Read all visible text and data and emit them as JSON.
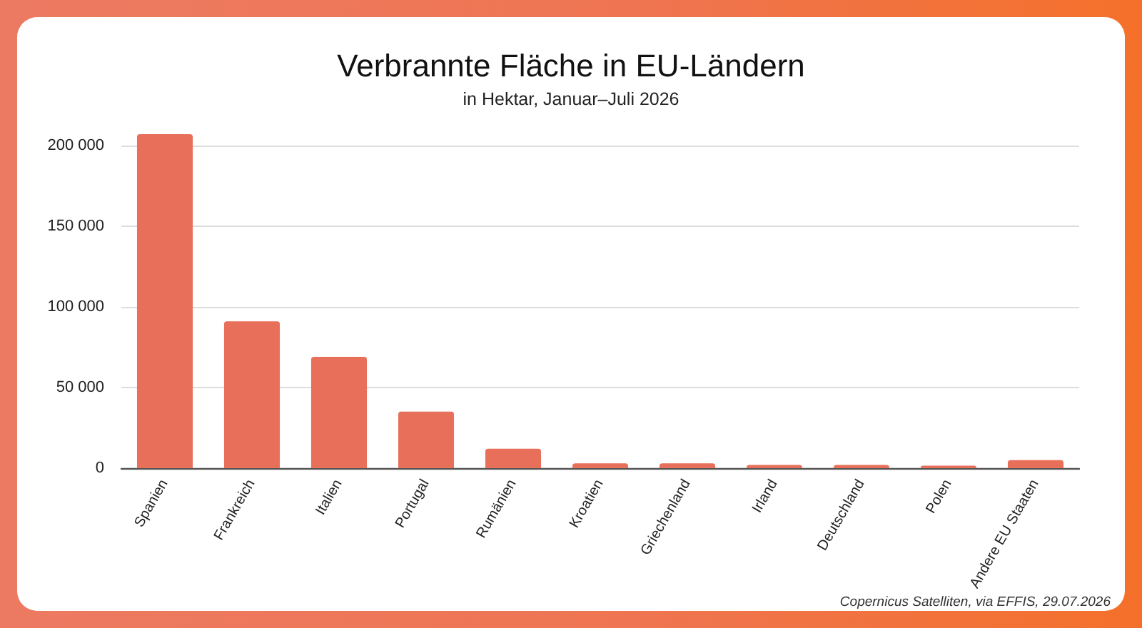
{
  "chart_data": {
    "type": "bar",
    "title": "Verbrannte Fläche in EU-Ländern",
    "subtitle": "in Hektar, Januar–Juli 2026",
    "categories": [
      "Spanien",
      "Frankreich",
      "Italien",
      "Portugal",
      "Rumänien",
      "Kroatien",
      "Griechenland",
      "Irland",
      "Deutschland",
      "Polen",
      "Andere EU Staaten"
    ],
    "values": [
      207000,
      91000,
      69000,
      35000,
      12000,
      3000,
      3000,
      2000,
      2000,
      1500,
      5000
    ],
    "color": "#e8705a",
    "ylim": [
      0,
      207000
    ],
    "yticks": [
      0,
      {
        "value": 50000,
        "label": "50 000"
      },
      {
        "value": 100000,
        "label": "100 000"
      },
      {
        "value": 150000,
        "label": "150 000"
      },
      {
        "value": 200000,
        "label": "200 000"
      }
    ],
    "grid": "y",
    "annotations": [
      "Copernicus Satelliten, via EFFIS, 29.07.2026"
    ]
  }
}
